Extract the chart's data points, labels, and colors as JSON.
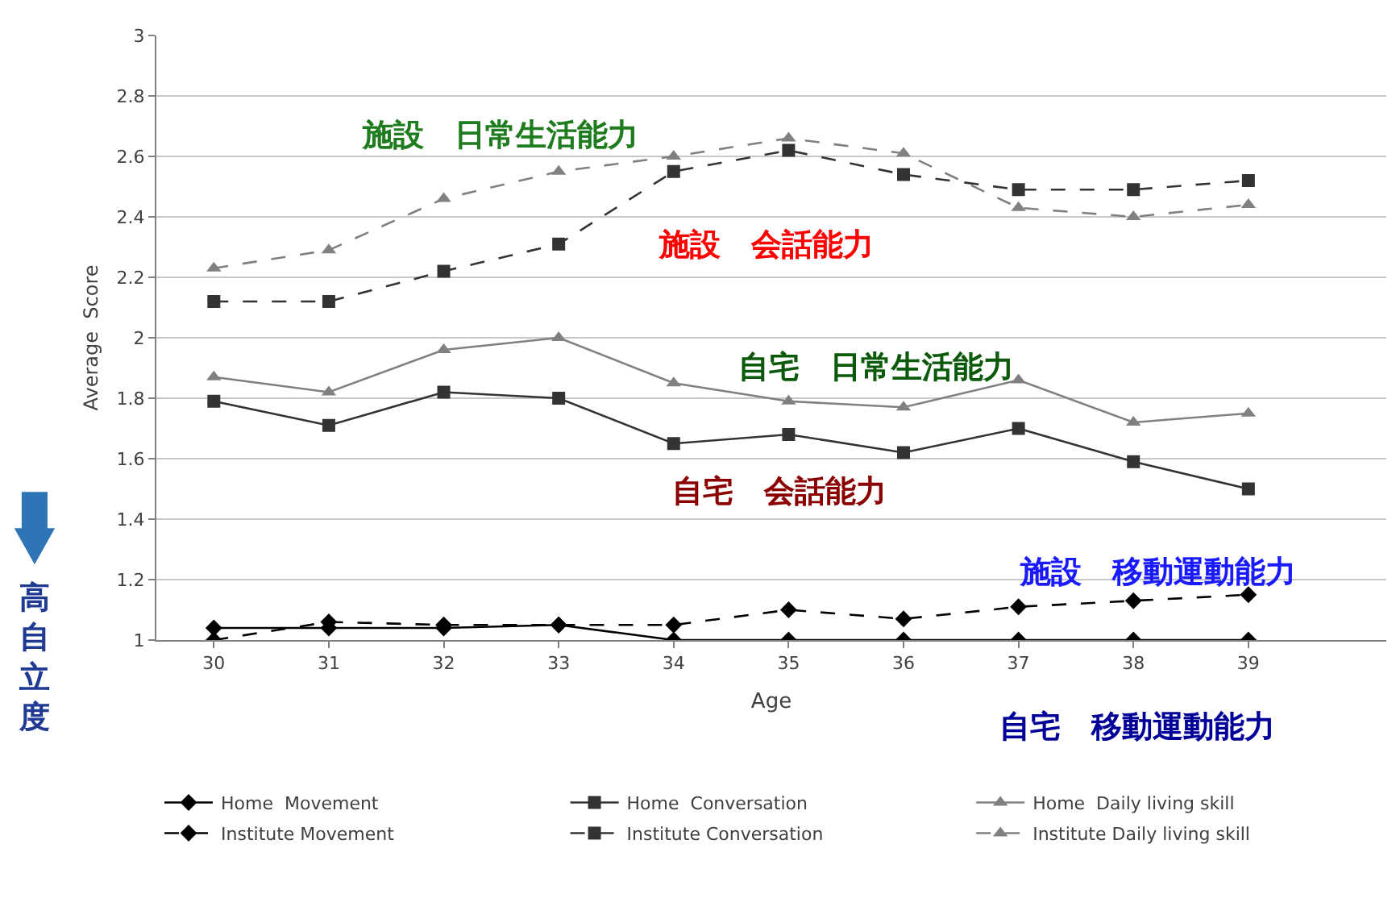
{
  "chart_data": {
    "type": "line",
    "xlabel": "Age",
    "ylabel": "Average  Score",
    "x": [
      30,
      31,
      32,
      33,
      34,
      35,
      36,
      37,
      38,
      39
    ],
    "xlim": [
      29.5,
      40.2
    ],
    "xticks": [
      30,
      31,
      32,
      33,
      34,
      35,
      36,
      37,
      38,
      39
    ],
    "ylim": [
      1,
      3
    ],
    "yticks": [
      1,
      {
        "value": 1.2,
        "label": "1.2"
      },
      {
        "value": 1.4,
        "label": "1.4"
      },
      {
        "value": 1.6,
        "label": "1.6"
      },
      {
        "value": 1.8,
        "label": "1.8"
      },
      2,
      {
        "value": 2.2,
        "label": "2.2"
      },
      {
        "value": 2.4,
        "label": "2.4"
      },
      {
        "value": 2.6,
        "label": "2.6"
      },
      {
        "value": 2.8,
        "label": "2.8"
      },
      3
    ],
    "grid": "y",
    "legend": "bottom",
    "series": [
      {
        "name": "Home  Movement",
        "color": "#000000",
        "marker": "diamond",
        "line_style": "solid",
        "values": [
          1.04,
          1.04,
          1.04,
          1.05,
          1.0,
          1.0,
          1.0,
          1.0,
          1.0,
          1.0
        ]
      },
      {
        "name": "Home  Conversation",
        "color": "#333333",
        "marker": "square",
        "line_style": "solid",
        "values": [
          1.79,
          1.71,
          1.82,
          1.8,
          1.65,
          1.68,
          1.62,
          1.7,
          1.59,
          1.5
        ]
      },
      {
        "name": "Home  Daily living skill",
        "color": "#808080",
        "marker": "triangle",
        "line_style": "solid",
        "values": [
          1.87,
          1.82,
          1.96,
          2.0,
          1.85,
          1.79,
          1.77,
          1.86,
          1.72,
          1.75
        ]
      },
      {
        "name": "Institute Movement",
        "color": "#000000",
        "marker": "diamond",
        "line_style": "dashed",
        "values": [
          1.0,
          1.06,
          1.05,
          1.05,
          1.05,
          1.1,
          1.07,
          1.11,
          1.13,
          1.15
        ]
      },
      {
        "name": "Institute Conversation",
        "color": "#333333",
        "marker": "square",
        "line_style": "dashed",
        "values": [
          2.12,
          2.12,
          2.22,
          2.31,
          2.55,
          2.62,
          2.54,
          2.49,
          2.49,
          2.52
        ]
      },
      {
        "name": "Institute Daily living skill",
        "color": "#808080",
        "marker": "triangle",
        "line_style": "dashed",
        "values": [
          2.23,
          2.29,
          2.46,
          2.55,
          2.6,
          2.66,
          2.61,
          2.43,
          2.4,
          2.44
        ]
      }
    ],
    "annotations": [
      "施設　日常生活能力",
      "施設　会話能力",
      "自宅　日常生活能力",
      "自宅　会話能力",
      "施設　移動運動能力",
      "自宅　移動運動能力",
      "高自立度"
    ]
  }
}
